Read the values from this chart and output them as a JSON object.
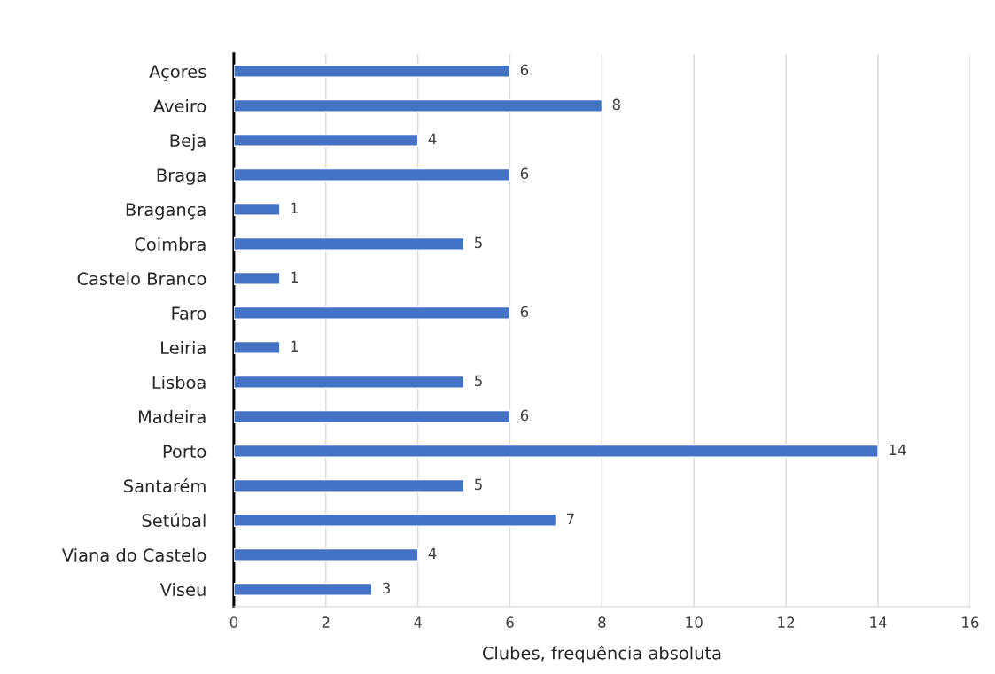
{
  "chart_data": {
    "type": "bar",
    "orientation": "horizontal",
    "xlabel": "Clubes, frequência absoluta",
    "categories": [
      "Açores",
      "Aveiro",
      "Beja",
      "Braga",
      "Bragança",
      "Coimbra",
      "Castelo Branco",
      "Faro",
      "Leiria",
      "Lisboa",
      "Madeira",
      "Porto",
      "Santarém",
      "Setúbal",
      "Viana do Castelo",
      "Viseu"
    ],
    "values": [
      6,
      8,
      4,
      6,
      1,
      5,
      1,
      6,
      1,
      5,
      6,
      14,
      5,
      7,
      4,
      3
    ],
    "color": "#4472c4",
    "xlim": [
      0,
      16
    ],
    "xticks": [
      0,
      2,
      4,
      6,
      8,
      10,
      12,
      14,
      16
    ],
    "grid": "x",
    "data_labels": true
  }
}
